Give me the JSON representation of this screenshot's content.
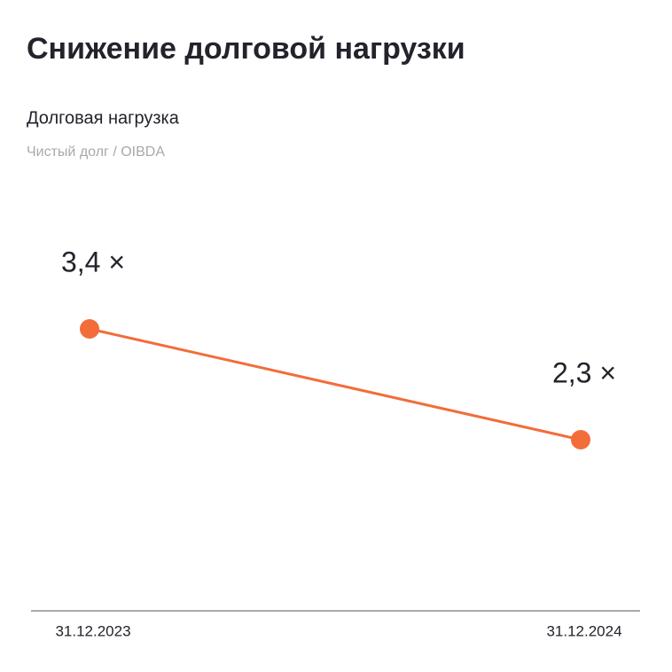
{
  "chart_data": {
    "type": "line",
    "title": "Снижение долговой нагрузки",
    "subtitle": "Долговая нагрузка",
    "note": "Чистый долг / OIBDA",
    "categories": [
      "31.12.2023",
      "31.12.2024"
    ],
    "values": [
      3.4,
      2.3
    ],
    "value_labels": [
      "3,4 ×",
      "2,3 ×"
    ],
    "color": "#f26d3a"
  }
}
